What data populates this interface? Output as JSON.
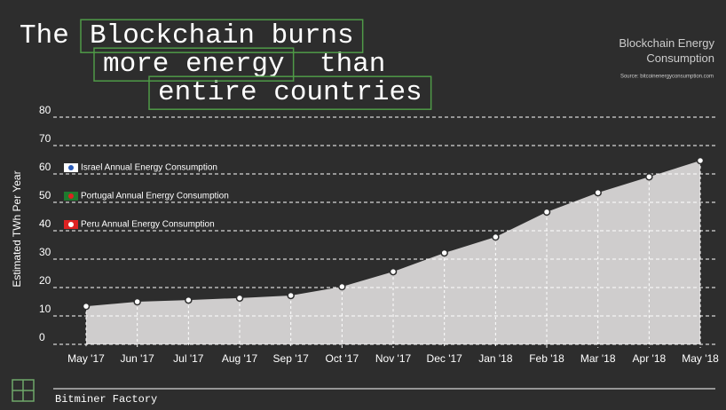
{
  "header": {
    "title": [
      "The",
      "Blockchain burns",
      "more energy",
      "than",
      "entire countries"
    ],
    "subtitle": "Blockchain Energy Consumption",
    "source": "Source: bitcoinenergyconsumption.com"
  },
  "chart_data": {
    "type": "area",
    "y_label": "Estimated TWh Per Year",
    "categories": [
      "May '17",
      "Jun '17",
      "Jul '17",
      "Aug '17",
      "Sep '17",
      "Oct '17",
      "Nov '17",
      "Dec '17",
      "Jan '18",
      "Feb '18",
      "Mar '18",
      "Apr '18",
      "May '18"
    ],
    "values": [
      13.4,
      15,
      15.6,
      16.3,
      17.2,
      20.3,
      25.6,
      32.2,
      37.8,
      46.6,
      53.4,
      59,
      64.7
    ],
    "color": "#cfcdcd",
    "ylim": [
      0,
      80
    ],
    "yticks": [
      0,
      10,
      20,
      30,
      40,
      50,
      60,
      70,
      80
    ],
    "grid": true,
    "annotations": [
      {
        "text": "Israel Annual Energy Consumption",
        "value": 60
      },
      {
        "text": "Portugal Annual Energy Consumption",
        "value": 50
      },
      {
        "text": "Peru Annual Energy Consumption",
        "value": 40
      }
    ]
  },
  "footer": {
    "brand": "Bitminer Factory"
  }
}
